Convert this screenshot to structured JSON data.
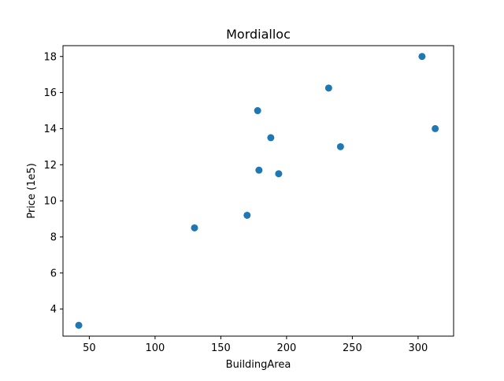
{
  "chart_data": {
    "type": "scatter",
    "title": "Mordialloc",
    "xlabel": "BuildingArea",
    "ylabel": "Price (1e5)",
    "xlim": [
      30,
      327
    ],
    "ylim": [
      2.5,
      18.6
    ],
    "xticks": [
      50,
      100,
      150,
      200,
      250,
      300
    ],
    "yticks": [
      4,
      6,
      8,
      10,
      12,
      14,
      16,
      18
    ],
    "grid": false,
    "legend": "none",
    "marker_color": "#1f77b4",
    "points": [
      {
        "x": 42,
        "y": 3.1
      },
      {
        "x": 130,
        "y": 8.5
      },
      {
        "x": 170,
        "y": 9.2
      },
      {
        "x": 178,
        "y": 15.0
      },
      {
        "x": 179,
        "y": 11.7
      },
      {
        "x": 188,
        "y": 13.5
      },
      {
        "x": 194,
        "y": 11.5
      },
      {
        "x": 232,
        "y": 16.25
      },
      {
        "x": 241,
        "y": 13.0
      },
      {
        "x": 303,
        "y": 18.0
      },
      {
        "x": 313,
        "y": 14.0
      }
    ]
  }
}
